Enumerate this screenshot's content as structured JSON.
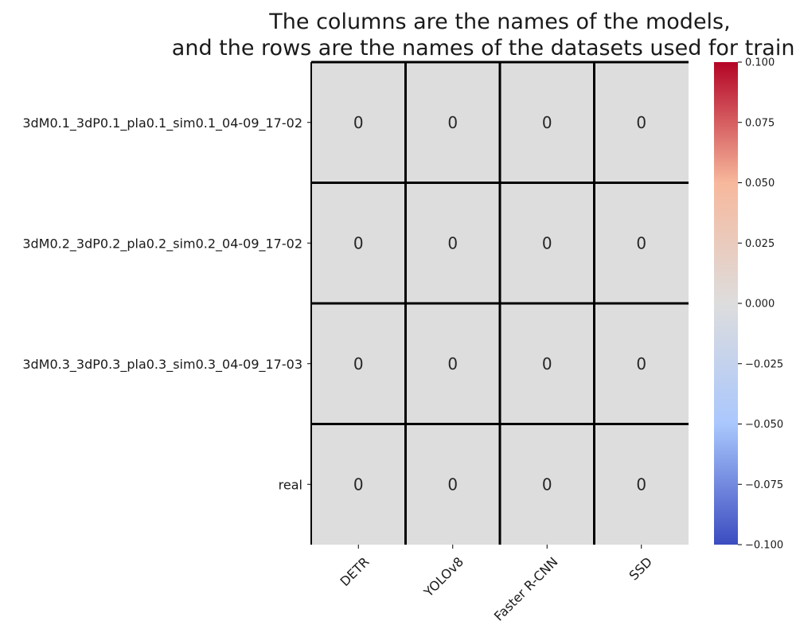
{
  "chart_data": {
    "type": "heatmap",
    "title_lines": [
      "The columns are the names of the models,",
      "and the rows are the names of the datasets used for training"
    ],
    "columns": [
      "DETR",
      "YOLOv8",
      "Faster R-CNN",
      "SSD"
    ],
    "rows": [
      "3dM0.1_3dP0.1_pla0.1_sim0.1_04-09_17-02",
      "3dM0.2_3dP0.2_pla0.2_sim0.2_04-09_17-02",
      "3dM0.3_3dP0.3_pla0.3_sim0.3_04-09_17-03",
      "real"
    ],
    "values": [
      [
        0,
        0,
        0,
        0
      ],
      [
        0,
        0,
        0,
        0
      ],
      [
        0,
        0,
        0,
        0
      ],
      [
        0,
        0,
        0,
        0
      ]
    ],
    "annotations": true,
    "colormap": "coolwarm",
    "vmin": -0.1,
    "vmax": 0.1,
    "colorbar": {
      "ticks": [
        0.1,
        0.075,
        0.05,
        0.025,
        0.0,
        -0.025,
        -0.05,
        -0.075,
        -0.1
      ],
      "tick_labels": [
        "0.100",
        "0.075",
        "0.050",
        "0.025",
        "0.000",
        "−0.025",
        "−0.050",
        "−0.075",
        "−0.100"
      ],
      "position": "right"
    },
    "cell_border_color": "#000000",
    "colormap_stops": [
      "#3b4cc0",
      "#aac7fd",
      "#dddddd",
      "#f7b89c",
      "#b40426"
    ],
    "grid": true
  }
}
